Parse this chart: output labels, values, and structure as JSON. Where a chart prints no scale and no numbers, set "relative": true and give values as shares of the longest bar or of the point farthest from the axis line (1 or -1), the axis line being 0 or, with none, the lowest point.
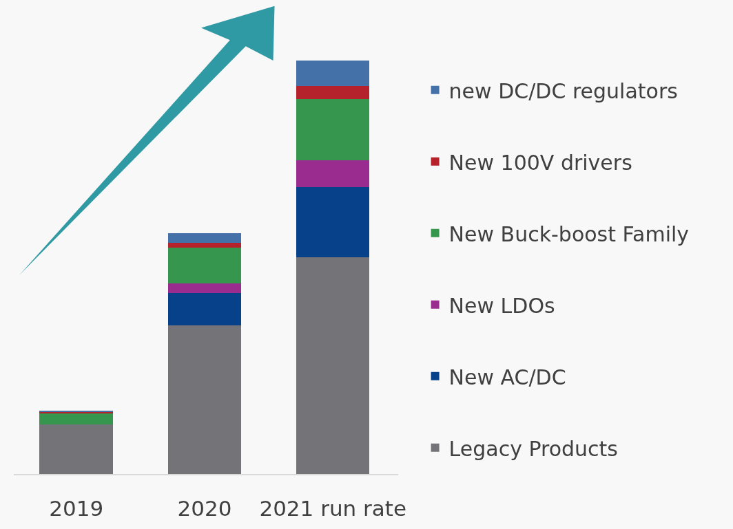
{
  "chart_data": {
    "type": "bar",
    "stacked": true,
    "relative": true,
    "legend": "right",
    "categories": [
      "2019",
      "2020",
      "2021 run rate"
    ],
    "series": [
      {
        "name": "Legacy Products",
        "color": "#747378",
        "values": [
          0.119,
          0.36,
          0.524
        ]
      },
      {
        "name": "New AC/DC",
        "color": "#06418a",
        "values": [
          0,
          0.077,
          0.17
        ]
      },
      {
        "name": "New LDOs",
        "color": "#9a2c8f",
        "values": [
          0,
          0.024,
          0.064
        ]
      },
      {
        "name": "New Buck-boost Family",
        "color": "#37964e",
        "values": [
          0.029,
          0.086,
          0.148
        ]
      },
      {
        "name": "New 100V drivers",
        "color": "#b5222b",
        "values": [
          0.003,
          0.012,
          0.033
        ]
      },
      {
        "name": "new DC/DC regulators",
        "color": "#4472a8",
        "values": [
          0.002,
          0.023,
          0.061
        ]
      }
    ]
  }
}
